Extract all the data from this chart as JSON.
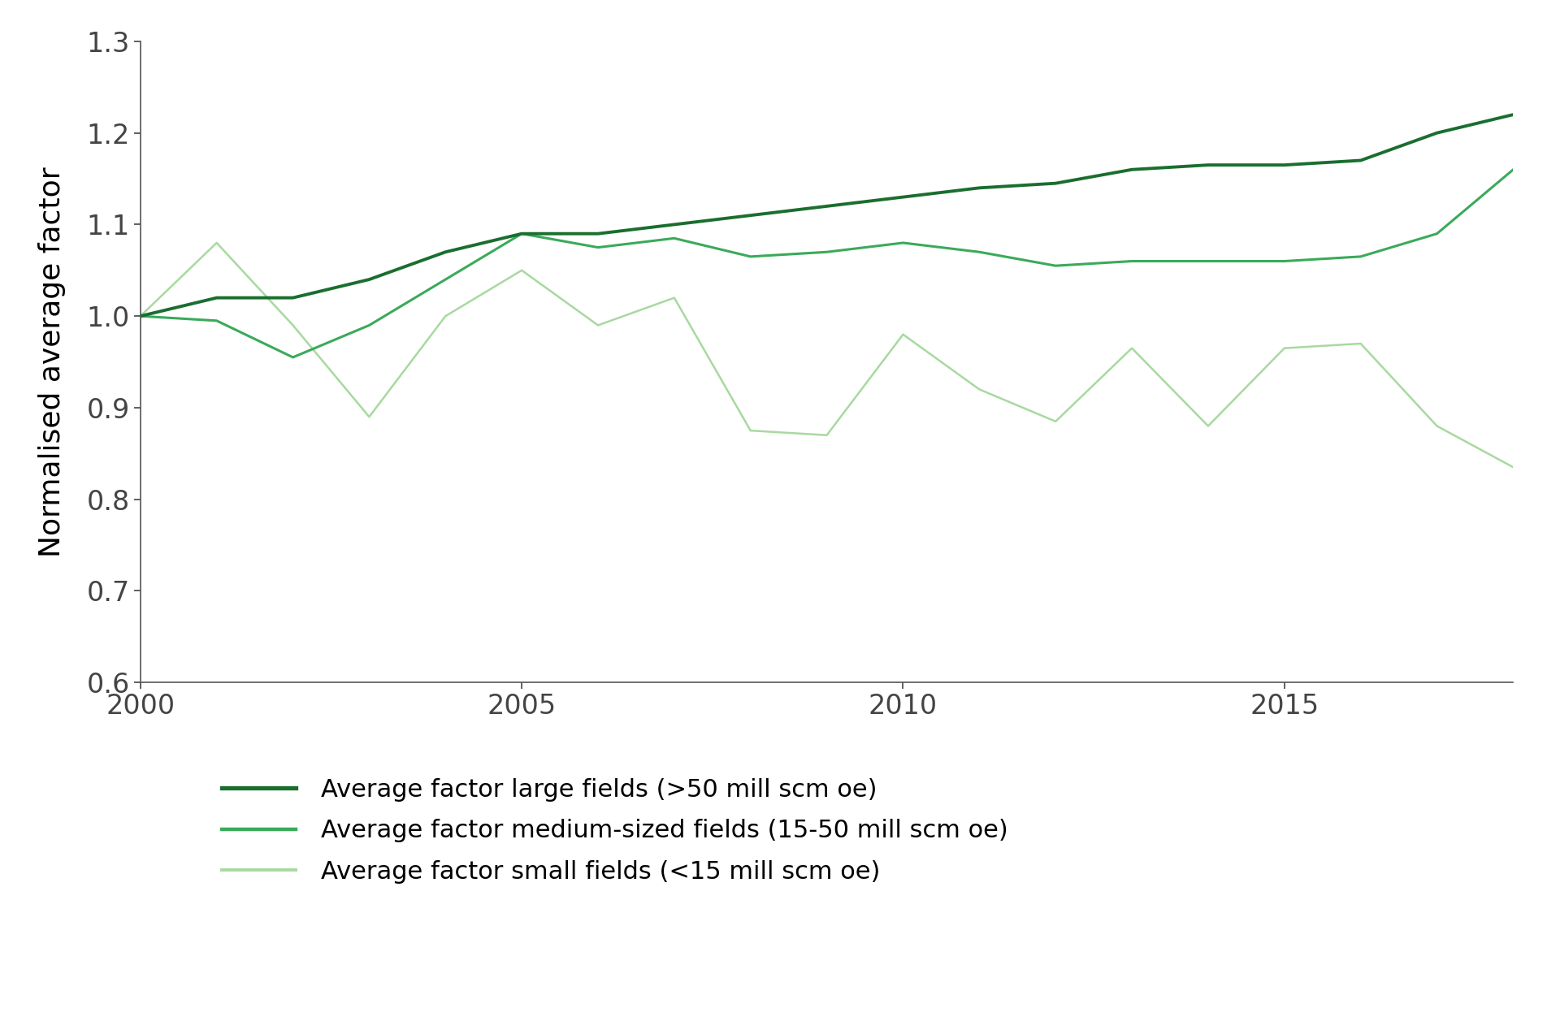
{
  "years": [
    2000,
    2001,
    2002,
    2003,
    2004,
    2005,
    2006,
    2007,
    2008,
    2009,
    2010,
    2011,
    2012,
    2013,
    2014,
    2015,
    2016,
    2017,
    2018
  ],
  "large_fields": [
    1.0,
    1.02,
    1.02,
    1.04,
    1.07,
    1.09,
    1.09,
    1.1,
    1.11,
    1.12,
    1.13,
    1.14,
    1.145,
    1.16,
    1.165,
    1.165,
    1.17,
    1.2,
    1.22
  ],
  "medium_fields": [
    1.0,
    0.995,
    0.955,
    0.99,
    1.04,
    1.09,
    1.075,
    1.085,
    1.065,
    1.07,
    1.08,
    1.07,
    1.055,
    1.06,
    1.06,
    1.06,
    1.065,
    1.09,
    1.16
  ],
  "small_fields": [
    1.0,
    1.08,
    0.99,
    0.89,
    1.0,
    1.05,
    0.99,
    1.02,
    0.875,
    0.87,
    0.98,
    0.92,
    0.885,
    0.965,
    0.88,
    0.965,
    0.97,
    0.88,
    0.835
  ],
  "color_large": "#1a6e2e",
  "color_medium": "#3aaa5a",
  "color_small": "#a8d9a0",
  "linewidth_large": 2.8,
  "linewidth_medium": 2.2,
  "linewidth_small": 1.8,
  "ylabel": "Normalised average factor",
  "ylim": [
    0.6,
    1.3
  ],
  "yticks": [
    0.6,
    0.7,
    0.8,
    0.9,
    1.0,
    1.1,
    1.2,
    1.3
  ],
  "xlim": [
    2000,
    2018
  ],
  "xticks": [
    2000,
    2005,
    2010,
    2015
  ],
  "legend_large": "Average factor large fields (>50 mill scm oe)",
  "legend_medium": "Average factor medium-sized fields (15-50 mill scm oe)",
  "legend_small": "Average factor small fields (<15 mill scm oe)",
  "background_color": "#ffffff",
  "spine_color": "#555555",
  "tick_color": "#555555",
  "font_size_axis": 26,
  "font_size_legend": 22,
  "font_size_ticks": 24
}
